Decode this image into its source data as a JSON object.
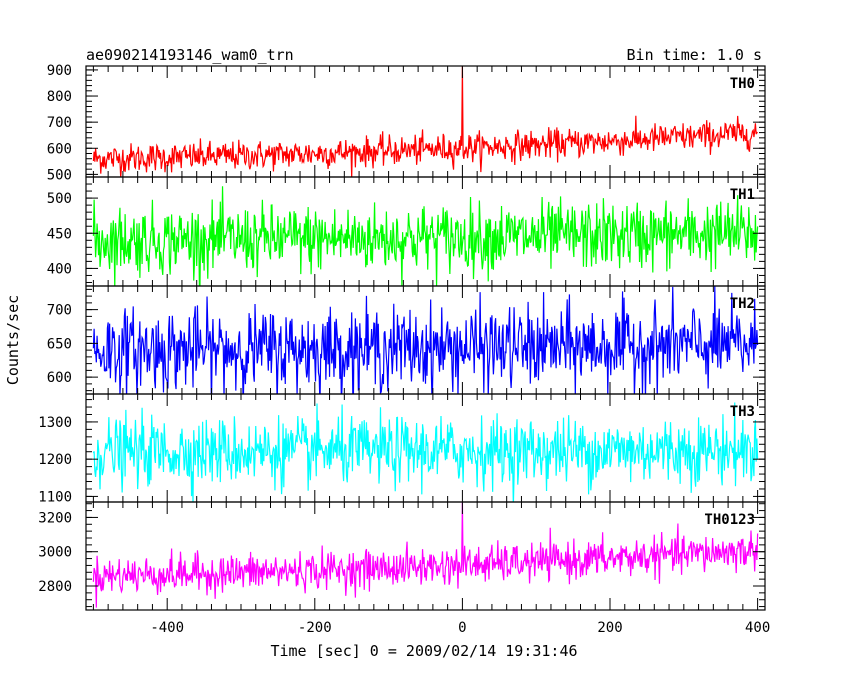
{
  "chart_data": {
    "type": "line",
    "title": "ae090214193146_wam0_trn",
    "subtitle": "Bin time: 1.0 s",
    "xlabel": "Time [sec] 0 = 2009/02/14 19:31:46",
    "ylabel": "Counts/sec",
    "xlim": [
      -510,
      410
    ],
    "x_range": [
      -500,
      400
    ],
    "x_ticks": [
      "-400",
      "-200",
      "0",
      "200",
      "400"
    ],
    "grid": false,
    "panels": [
      {
        "name": "TH0",
        "color": "#ff0000",
        "ylim": [
          490,
          915
        ],
        "y_ticks": [
          "500",
          "600",
          "700",
          "800",
          "900"
        ],
        "start_level": 560,
        "end_level": 660,
        "noise": 28,
        "spike_x": 0,
        "spike_value": 915
      },
      {
        "name": "TH1",
        "color": "#00ff00",
        "ylim": [
          375,
          530
        ],
        "y_ticks": [
          "400",
          "450",
          "500"
        ],
        "start_level": 440,
        "end_level": 450,
        "noise": 24
      },
      {
        "name": "TH2",
        "color": "#0000ff",
        "ylim": [
          575,
          735
        ],
        "y_ticks": [
          "600",
          "650",
          "700"
        ],
        "start_level": 640,
        "end_level": 648,
        "noise": 30
      },
      {
        "name": "TH3",
        "color": "#00ffff",
        "ylim": [
          1085,
          1375
        ],
        "y_ticks": [
          "1100",
          "1200",
          "1300"
        ],
        "start_level": 1220,
        "end_level": 1225,
        "noise": 45
      },
      {
        "name": "TH0123",
        "color": "#ff00ff",
        "ylim": [
          2660,
          3290
        ],
        "y_ticks": [
          "2800",
          "3000",
          "3200"
        ],
        "start_level": 2860,
        "end_level": 3010,
        "noise": 55,
        "spike_x": 0,
        "spike_value": 3290
      }
    ]
  }
}
